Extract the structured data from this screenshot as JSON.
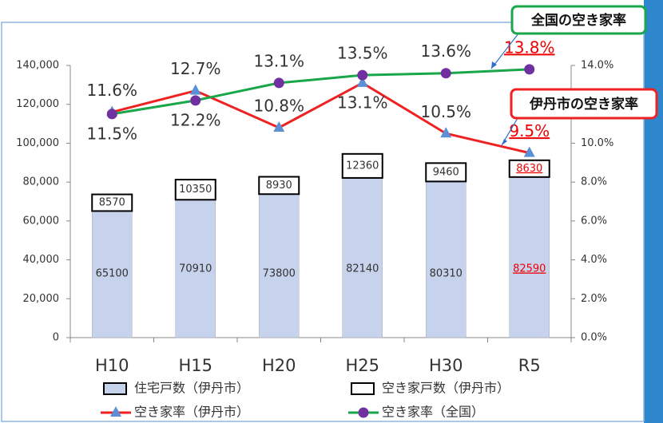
{
  "chart_data": {
    "type": "bar-line",
    "categories": [
      "H10",
      "H15",
      "H20",
      "H25",
      "H30",
      "R5"
    ],
    "series": [
      {
        "name": "住宅戸数（伊丹市）",
        "type": "bar",
        "color": "#c7d2ec",
        "values": [
          65100,
          70910,
          73800,
          82140,
          80310,
          82590
        ]
      },
      {
        "name": "空き家戸数（伊丹市）",
        "type": "bar",
        "color": "#ffffff",
        "values": [
          8570,
          10350,
          8930,
          12360,
          9460,
          8630
        ]
      },
      {
        "name": "空き家率（伊丹市）",
        "type": "line",
        "axis": "y2",
        "color": "#ee2222",
        "marker_color": "#5b8fd6",
        "values": [
          11.6,
          12.7,
          10.8,
          13.1,
          10.5,
          9.5
        ],
        "value_labels": [
          "11.6%",
          "12.7%",
          "10.8%",
          "13.1%",
          "10.5%",
          "9.5%"
        ]
      },
      {
        "name": "空き家率（全国）",
        "type": "line",
        "axis": "y2",
        "color": "#1aa64a",
        "marker_color": "#7030a0",
        "values": [
          11.5,
          12.2,
          13.1,
          13.5,
          13.6,
          13.8
        ],
        "value_labels": [
          "11.5%",
          "12.2%",
          "13.1%",
          "13.5%",
          "13.6%",
          "13.8%"
        ]
      }
    ],
    "ylim": [
      0,
      140000
    ],
    "yticks": [
      0,
      {
        "value": 20000,
        "label": "20,000"
      },
      {
        "value": 40000,
        "label": "40,000"
      },
      {
        "value": 60000,
        "label": "60,000"
      },
      {
        "value": 80000,
        "label": "80,000"
      },
      {
        "value": 100000,
        "label": "100,000"
      },
      {
        "value": 120000,
        "label": "120,000"
      },
      {
        "value": 140000,
        "label": "140,000"
      }
    ],
    "y2lim": [
      0,
      14
    ],
    "y2ticks": [
      {
        "value": 0,
        "label": "0.0%"
      },
      {
        "value": 2,
        "label": "2.0%"
      },
      {
        "value": 4,
        "label": "4.0%"
      },
      {
        "value": 6,
        "label": "6.0%"
      },
      {
        "value": 8,
        "label": "8.0%"
      },
      {
        "value": 10,
        "label": "10.0%"
      },
      {
        "value": 12,
        "label": "12.0%"
      },
      {
        "value": 14,
        "label": "14.0%"
      }
    ],
    "annotations": [
      {
        "text": "全国の空き家率",
        "color": "#1aa64a"
      },
      {
        "text": "伊丹市の空き家率",
        "color": "#ee2222"
      }
    ]
  }
}
